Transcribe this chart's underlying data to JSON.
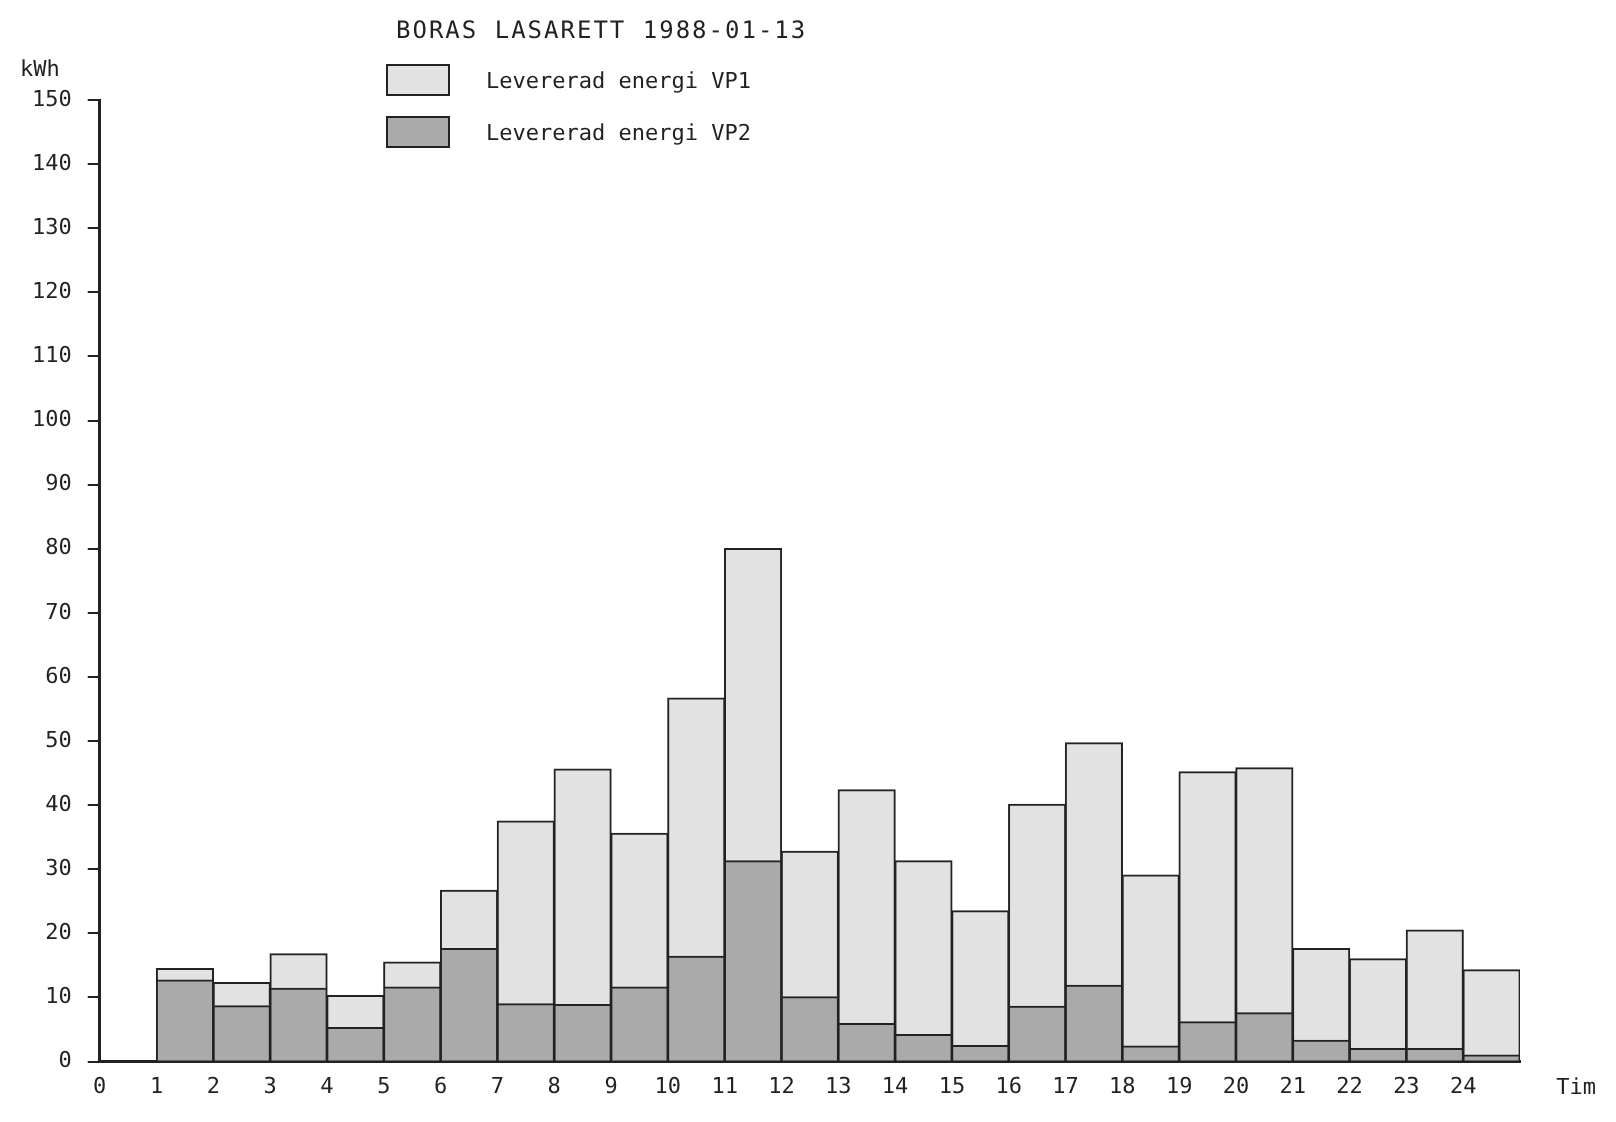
{
  "chart_data": {
    "type": "bar",
    "title": "BORAS LASARETT 1988-01-13",
    "xlabel": "Tim",
    "ylabel": "kWh",
    "x": [
      1.5,
      2.5,
      3.5,
      4.5,
      5.5,
      6.5,
      7.5,
      8.5,
      9.5,
      10.5,
      11.5,
      12.5,
      13.5,
      14.5,
      15.5,
      16.5,
      17.5,
      18.5,
      19.5,
      20.5,
      21.5,
      22.5,
      23.5,
      24.5
    ],
    "stacked": true,
    "series": [
      {
        "name": "Levererad energi VP2",
        "color": "#aaaaaa",
        "values": [
          12.7,
          8.7,
          11.4,
          5.3,
          11.6,
          17.6,
          9.0,
          8.9,
          11.6,
          16.4,
          31.3,
          10.1,
          5.9,
          4.2,
          2.5,
          8.6,
          11.9,
          2.4,
          6.2,
          7.6,
          3.3,
          2.0,
          2.0,
          1.0
        ]
      },
      {
        "name": "Levererad energi VP1",
        "color": "#e2e2e2",
        "values": [
          1.8,
          3.6,
          5.4,
          5.0,
          3.9,
          9.1,
          28.5,
          36.7,
          24.0,
          40.3,
          48.7,
          22.7,
          36.5,
          27.1,
          21.0,
          31.5,
          37.8,
          26.7,
          39.0,
          38.2,
          14.3,
          14.0,
          18.5,
          13.3
        ]
      }
    ],
    "xlim": [
      0,
      25
    ],
    "xticks": [
      0,
      1,
      2,
      3,
      4,
      5,
      6,
      7,
      8,
      9,
      10,
      11,
      12,
      13,
      14,
      15,
      16,
      17,
      18,
      19,
      20,
      21,
      22,
      23,
      24
    ],
    "ylim": [
      0,
      150
    ],
    "yticks": [
      0,
      10,
      20,
      30,
      40,
      50,
      60,
      70,
      80,
      90,
      100,
      110,
      120,
      130,
      140,
      150
    ],
    "grid": false,
    "legend": "top left"
  }
}
